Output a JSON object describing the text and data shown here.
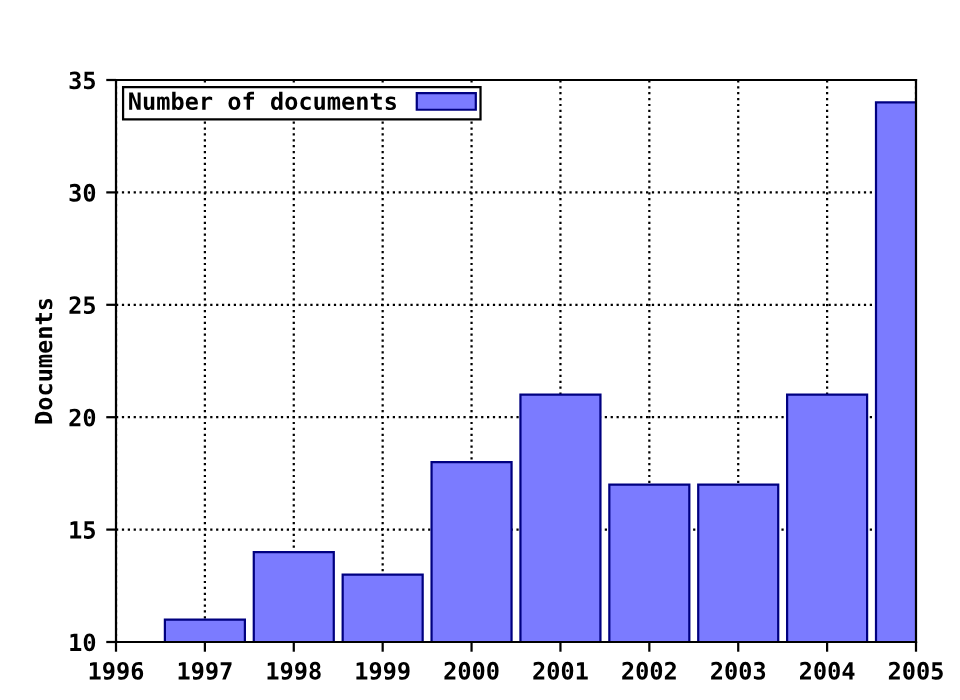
{
  "chart_data": {
    "type": "bar",
    "ylabel": "Documents",
    "x": [
      1997,
      1998,
      1999,
      2000,
      2001,
      2002,
      2003,
      2004,
      2005
    ],
    "series": [
      {
        "name": "Number of documents",
        "color": "#7b7bff",
        "values": [
          11,
          14,
          13,
          18,
          21,
          17,
          17,
          21,
          34
        ]
      }
    ],
    "xlim": [
      1996,
      2005
    ],
    "xticks": [
      1996,
      1997,
      1998,
      1999,
      2000,
      2001,
      2002,
      2003,
      2004,
      2005
    ],
    "ylim": [
      10,
      35
    ],
    "yticks": [
      10,
      15,
      20,
      25,
      30,
      35
    ],
    "grid": true,
    "legend": "top left"
  }
}
